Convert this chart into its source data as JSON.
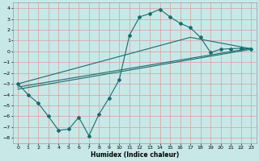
{
  "title": "",
  "xlabel": "Humidex (Indice chaleur)",
  "background_color": "#c8e8e8",
  "grid_color": "#d8a8a8",
  "line_color": "#1a6b6b",
  "xlim": [
    -0.5,
    23.5
  ],
  "ylim": [
    -8.5,
    4.5
  ],
  "xticks": [
    0,
    1,
    2,
    3,
    4,
    5,
    6,
    7,
    8,
    9,
    10,
    11,
    12,
    13,
    14,
    15,
    16,
    17,
    18,
    19,
    20,
    21,
    22,
    23
  ],
  "yticks": [
    -8,
    -7,
    -6,
    -5,
    -4,
    -3,
    -2,
    -1,
    0,
    1,
    2,
    3,
    4
  ],
  "curve_x": [
    0,
    1,
    2,
    3,
    4,
    5,
    6,
    7,
    8,
    9,
    10,
    11,
    12,
    13,
    14,
    15,
    16,
    17,
    18,
    19,
    20,
    21,
    22,
    23
  ],
  "curve_y": [
    -3.0,
    -4.0,
    -4.8,
    -6.0,
    -7.3,
    -7.2,
    -6.1,
    -7.8,
    -5.8,
    -4.3,
    -2.6,
    1.5,
    3.2,
    3.5,
    3.9,
    3.2,
    2.6,
    2.2,
    1.3,
    -0.1,
    0.2,
    0.25,
    0.3,
    0.2
  ],
  "line1_x": [
    0,
    17,
    23
  ],
  "line1_y": [
    -3.0,
    1.3,
    0.25
  ],
  "line2_x": [
    0,
    23
  ],
  "line2_y": [
    -3.5,
    0.2
  ],
  "line3_x": [
    0,
    23
  ],
  "line3_y": [
    -3.3,
    0.3
  ]
}
